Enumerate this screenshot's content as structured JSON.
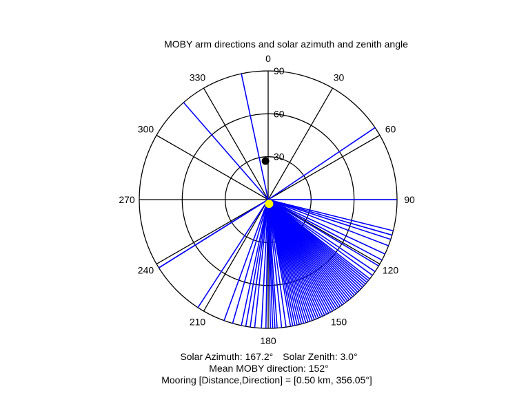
{
  "chart_data": {
    "type": "polar",
    "title": "MOBY arm directions and solar azimuth and zenith angle",
    "theta_labels": [
      "0",
      "30",
      "60",
      "90",
      "120",
      "150",
      "180",
      "210",
      "240",
      "270",
      "300",
      "330"
    ],
    "radial_ticks": [
      30,
      60,
      90
    ],
    "radial_tick_labels": [
      "30",
      "60",
      "90"
    ],
    "radial_max": 90,
    "theta_zero": "top",
    "theta_direction": "clockwise",
    "arm_directions_deg": [
      348,
      319,
      238,
      238,
      213,
      177,
      167,
      56,
      90,
      104,
      106,
      108,
      111,
      115,
      118,
      121,
      124,
      126,
      128,
      129,
      130,
      131,
      132,
      133,
      134,
      135,
      136,
      137,
      138,
      139,
      140,
      141,
      142,
      143,
      144,
      145,
      146,
      147,
      148,
      149,
      150,
      151,
      152,
      153,
      154,
      155,
      156,
      157,
      158,
      159,
      160,
      161,
      162,
      163,
      164,
      165,
      166,
      168,
      169,
      170,
      172,
      174,
      176,
      178,
      179,
      181,
      183,
      186,
      188,
      190,
      192,
      196,
      200
    ],
    "arm_color": "#0000ff",
    "mooring_marker": {
      "direction_deg": 356.05,
      "radius": 27,
      "color": "#000000"
    },
    "solar_marker": {
      "azimuth_deg": 167.2,
      "zenith_deg": 3.0,
      "color": "#ffff00"
    },
    "grid": true
  },
  "info": {
    "line1_a": "Solar Azimuth: 167.2°",
    "line1_b": "Solar Zenith: 3.0°",
    "line2": "Mean MOBY direction: 152°",
    "line3": "Mooring [Distance,Direction] = [0.50 km, 356.05°]"
  }
}
